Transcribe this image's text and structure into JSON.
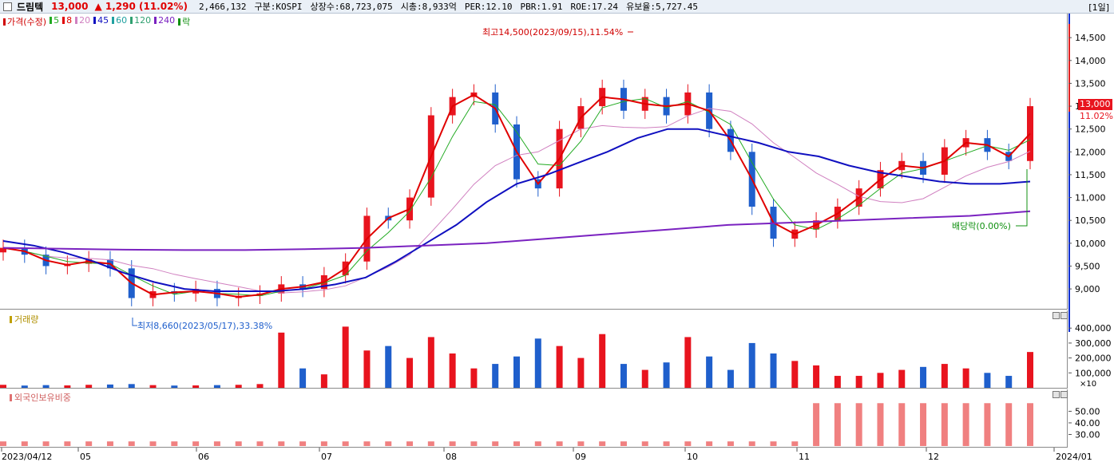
{
  "header": {
    "stock_name": "드림텍",
    "price": "13,000",
    "change": "▲ 1,290 (11.02%)",
    "info_items": [
      "2,466,132",
      "구분:KOSPI",
      "상장수:68,723,075",
      "시총:8,933억",
      "PER:12.10",
      "PBR:1.91",
      "ROE:17.24",
      "유보율:5,727.45"
    ],
    "period": "[1일]"
  },
  "price_panel": {
    "legend": [
      {
        "label": "가격(수정)",
        "color": "#d00000"
      },
      {
        "label": "5",
        "color": "#22aa22"
      },
      {
        "label": "8",
        "color": "#e00000"
      },
      {
        "label": "20",
        "color": "#d080c0"
      },
      {
        "label": "45",
        "color": "#1010c0"
      },
      {
        "label": "60",
        "color": "#20a0a0"
      },
      {
        "label": "120",
        "color": "#30a070"
      },
      {
        "label": "240",
        "color": "#7a22c0"
      },
      {
        "label": "락",
        "color": "#109010"
      }
    ],
    "high_annotation": "최고14,500(2023/09/15),11.54%",
    "low_annotation": "최저8,660(2023/05/17),33.38%",
    "ex_dividend_annotation": "배당락(0.00%)",
    "current_price_tag": "13,000",
    "current_change_tag": "11.02%",
    "y_ticks": [
      "14,500",
      "14,000",
      "13,500",
      "13,000",
      "12,500",
      "12,000",
      "11,500",
      "11,000",
      "10,500",
      "10,000",
      "9,500",
      "9,000"
    ]
  },
  "volume_panel": {
    "label": "거래량",
    "y_ticks": [
      "400,000",
      "300,000",
      "200,000",
      "100,000"
    ],
    "unit": "×10"
  },
  "foreign_panel": {
    "label": "외국인보유비중",
    "y_ticks": [
      "50.00",
      "40.00",
      "30.00"
    ]
  },
  "x_axis": {
    "labels": [
      "2023/04/12",
      "05",
      "06",
      "07",
      "08",
      "09",
      "10",
      "11",
      "12",
      "2024/01"
    ]
  },
  "colors": {
    "up": "#e8141e",
    "down": "#1f5fcc",
    "ma5": "#22aa22",
    "ma8": "#e00000",
    "ma20": "#d080c0",
    "ma45": "#1010c0",
    "ma60": "#20a0a0",
    "ma120": "#30a070",
    "ma240": "#7a22c0",
    "foreign_bar": "#f08080"
  },
  "chart_data": [
    {
      "type": "candlestick",
      "title": "드림텍",
      "x_range": [
        "2023/04/12",
        "2024/01"
      ],
      "ylim": [
        8600,
        14800
      ],
      "sampling": "approx. weekly closes read from chart",
      "series": [
        {
          "name": "가격(수정)",
          "values": [
            9900,
            9750,
            9500,
            9550,
            9650,
            9450,
            8800,
            8950,
            8900,
            9000,
            8800,
            8850,
            8900,
            9100,
            9000,
            9300,
            9600,
            10600,
            10500,
            11000,
            12800,
            13200,
            13300,
            12600,
            11400,
            11200,
            12500,
            13000,
            13400,
            12900,
            13200,
            12800,
            13300,
            12500,
            12000,
            10800,
            10100,
            10300,
            10500,
            10800,
            11200,
            11600,
            11800,
            11500,
            12100,
            12300,
            12000,
            11800,
            13000
          ]
        },
        {
          "name": "45",
          "values": [
            10050,
            9950,
            9800,
            9600,
            9350,
            9150,
            9000,
            8950,
            8950,
            8950,
            9000,
            9100,
            9250,
            9600,
            10000,
            10400,
            10900,
            11300,
            11500,
            11750,
            12000,
            12300,
            12500,
            12500,
            12350,
            12200,
            12000,
            11900,
            11700,
            11550,
            11450,
            11350,
            11300,
            11300,
            11350
          ]
        },
        {
          "name": "240",
          "values": [
            9900,
            9880,
            9860,
            9850,
            9850,
            9870,
            9900,
            9950,
            10000,
            10100,
            10200,
            10300,
            10400,
            10450,
            10500,
            10550,
            10600,
            10700
          ]
        }
      ]
    },
    {
      "type": "bar",
      "title": "거래량",
      "ylim": [
        0,
        460000
      ],
      "unit": "×10",
      "series": [
        {
          "name": "거래량",
          "values": [
            20000,
            15000,
            18000,
            16000,
            20000,
            22000,
            25000,
            18000,
            15000,
            16000,
            18000,
            20000,
            25000,
            370000,
            130000,
            90000,
            410000,
            250000,
            280000,
            200000,
            340000,
            230000,
            130000,
            160000,
            210000,
            330000,
            280000,
            200000,
            360000,
            160000,
            120000,
            170000,
            340000,
            210000,
            120000,
            300000,
            230000,
            180000,
            150000,
            80000,
            80000,
            100000,
            120000,
            140000,
            160000,
            130000,
            100000,
            80000,
            240000
          ]
        }
      ]
    },
    {
      "type": "bar",
      "title": "외국인보유비중",
      "ylim": [
        20,
        62
      ],
      "series": [
        {
          "name": "외국인보유비중",
          "values": [
            24,
            24,
            24,
            24,
            24,
            24,
            24,
            24,
            24,
            24,
            24,
            24,
            24,
            24,
            24,
            24,
            24,
            24,
            24,
            24,
            24,
            24,
            24,
            24,
            24,
            24,
            24,
            24,
            24,
            24,
            24,
            24,
            24,
            24,
            24,
            24,
            24,
            24,
            57,
            57,
            57,
            57,
            57,
            57,
            57,
            57,
            57,
            57,
            57
          ]
        }
      ]
    }
  ]
}
